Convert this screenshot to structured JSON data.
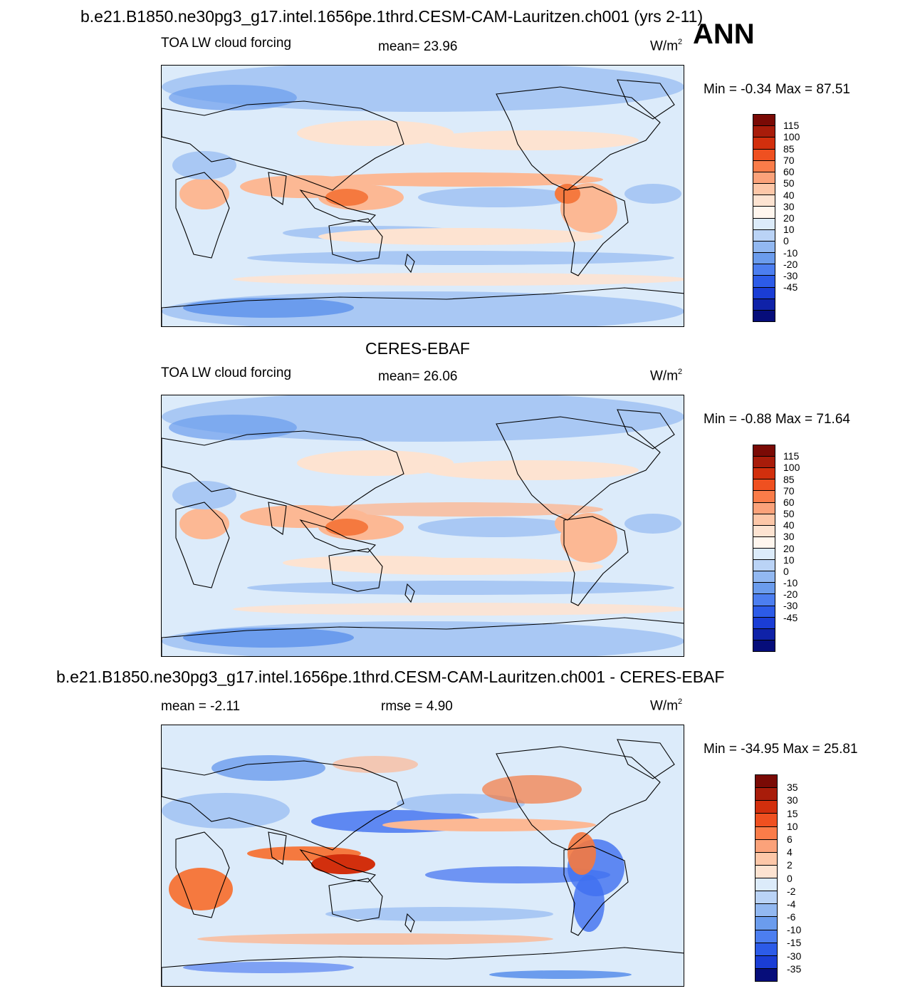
{
  "header": {
    "title": "b.e21.B1850.ne30pg3_g17.intel.1656pe.1thrd.CESM-CAM-Lauritzen.ch001 (yrs 2-11)",
    "season": "ANN"
  },
  "panels": [
    {
      "title": "",
      "left_label": "TOA LW cloud forcing",
      "center_label": "mean=  23.96",
      "units_base": "W/m",
      "units_exp": "2",
      "minmax": "Min =  -0.34 Max =  87.51",
      "map_icon": "world-map-pacific-centered",
      "colorbar": {
        "labels": [
          "115",
          "100",
          "85",
          "70",
          "60",
          "50",
          "40",
          "30",
          "20",
          "10",
          "0",
          "-10",
          "-20",
          "-30",
          "-45"
        ],
        "colors": [
          "#7a0a05",
          "#a81c0a",
          "#d22f0d",
          "#ef5020",
          "#fa7c49",
          "#fba27a",
          "#fdc7a8",
          "#fde3d1",
          "#fff6ee",
          "#dcebfa",
          "#bad3f6",
          "#92b8f1",
          "#6b9ced",
          "#4c7ef0",
          "#2c5be8",
          "#1a3dd5",
          "#0f22a8",
          "#060d7a"
        ]
      }
    },
    {
      "title": "CERES-EBAF",
      "left_label": "TOA LW cloud forcing",
      "center_label": "mean=  26.06",
      "units_base": "W/m",
      "units_exp": "2",
      "minmax": "Min =  -0.88 Max =  71.64",
      "map_icon": "world-map-pacific-centered",
      "colorbar": {
        "labels": [
          "115",
          "100",
          "85",
          "70",
          "60",
          "50",
          "40",
          "30",
          "20",
          "10",
          "0",
          "-10",
          "-20",
          "-30",
          "-45"
        ],
        "colors": [
          "#7a0a05",
          "#a81c0a",
          "#d22f0d",
          "#ef5020",
          "#fa7c49",
          "#fba27a",
          "#fdc7a8",
          "#fde3d1",
          "#fff6ee",
          "#dcebfa",
          "#bad3f6",
          "#92b8f1",
          "#6b9ced",
          "#4c7ef0",
          "#2c5be8",
          "#1a3dd5",
          "#0f22a8",
          "#060d7a"
        ]
      }
    },
    {
      "title": "b.e21.B1850.ne30pg3_g17.intel.1656pe.1thrd.CESM-CAM-Lauritzen.ch001 - CERES-EBAF",
      "left_label": "mean =  -2.11",
      "center_label": "rmse =    4.90",
      "units_base": "W/m",
      "units_exp": "2",
      "minmax": "Min = -34.95 Max =  25.81",
      "map_icon": "world-map-pacific-centered",
      "colorbar": {
        "labels": [
          "35",
          "30",
          "15",
          "10",
          "6",
          "4",
          "2",
          "0",
          "-2",
          "-4",
          "-6",
          "-10",
          "-15",
          "-30",
          "-35"
        ],
        "colors": [
          "#7a0a05",
          "#a81c0a",
          "#d22f0d",
          "#ef5020",
          "#fa7c49",
          "#fba27a",
          "#fdc7a8",
          "#fde3d1",
          "#dcebfa",
          "#bad3f6",
          "#92b8f1",
          "#6b9ced",
          "#4c7ef0",
          "#2c5be8",
          "#1a3dd5",
          "#060d7a"
        ]
      }
    }
  ],
  "palette": {
    "ocean_light": "#dcebfa",
    "blue_mid": "#a9c8f4",
    "blue_deep": "#6b9ced",
    "blue_strong": "#3f6ff0",
    "peach": "#fde3d1",
    "orange_light": "#fcb894",
    "orange": "#f5793f",
    "red": "#d22f0d",
    "coast": "#000000"
  }
}
